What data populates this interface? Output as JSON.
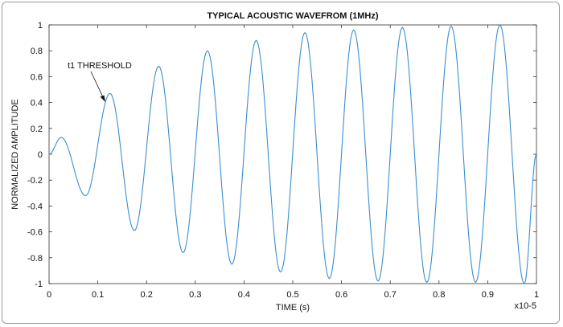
{
  "chart_data": {
    "type": "line",
    "title": "TYPICAL ACOUSTIC WAVEFROM (1MHz)",
    "xlabel": "TIME (s)",
    "ylabel": "NORMALIZED AMPLITUDE",
    "x_exponent_label": "x10-5",
    "xlim": [
      0,
      1
    ],
    "ylim": [
      -1,
      1
    ],
    "x_ticks": [
      "0",
      "0.1",
      "0.2",
      "0.3",
      "0.4",
      "0.5",
      "0.6",
      "0.7",
      "0.8",
      "0.9",
      "1"
    ],
    "y_ticks": [
      "1",
      "0.8",
      "0.6",
      "0.4",
      "0.2",
      "0",
      "-0.2",
      "-0.4",
      "-0.6",
      "-0.8",
      "-1"
    ],
    "grid": false,
    "color": "#3a8fd0",
    "annotation": {
      "text": "t1 THRESHOLD",
      "x": 0.11,
      "y": 0.42
    },
    "series": [
      {
        "x": [
          0,
          0.025,
          0.075,
          0.125,
          0.175,
          0.225,
          0.275,
          0.325,
          0.375,
          0.425,
          0.475,
          0.525,
          0.575,
          0.625,
          0.675,
          0.725,
          0.775,
          0.825,
          0.875,
          0.925,
          0.975,
          1.0
        ],
        "y": [
          0,
          0.13,
          -0.32,
          0.47,
          -0.59,
          0.68,
          -0.76,
          0.8,
          -0.85,
          0.88,
          -0.91,
          0.94,
          -0.96,
          0.96,
          -0.98,
          0.98,
          -0.99,
          0.99,
          -0.99,
          1.0,
          -1.0,
          0
        ]
      }
    ]
  }
}
